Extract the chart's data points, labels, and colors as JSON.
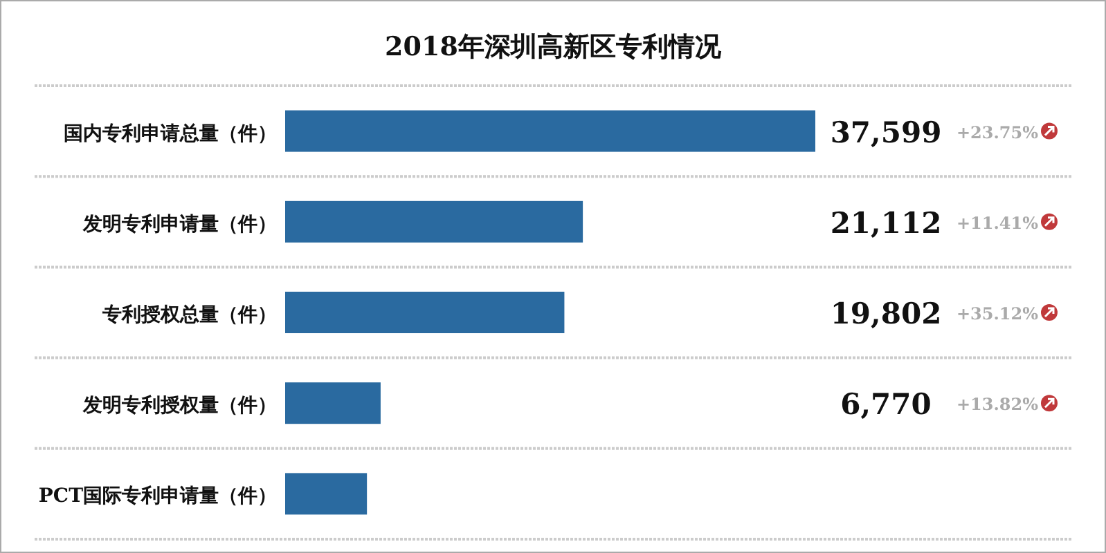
{
  "chart_data": {
    "type": "bar",
    "orientation": "horizontal",
    "title": "2018年深圳高新区专利情况",
    "categories": [
      "国内专利申请总量（件）",
      "发明专利申请量（件）",
      "专利授权总量（件）",
      "发明专利授权量（件）",
      "PCT国际专利申请量（件）"
    ],
    "values": [
      37599,
      21112,
      19802,
      6770,
      5800
    ],
    "value_labels": [
      "37,599",
      "21,112",
      "19,802",
      "6,770",
      null
    ],
    "color": "#2a6aa0",
    "annotations": [
      "+23.75%",
      "+11.41%",
      "+35.12%",
      "+13.82%"
    ]
  }
}
